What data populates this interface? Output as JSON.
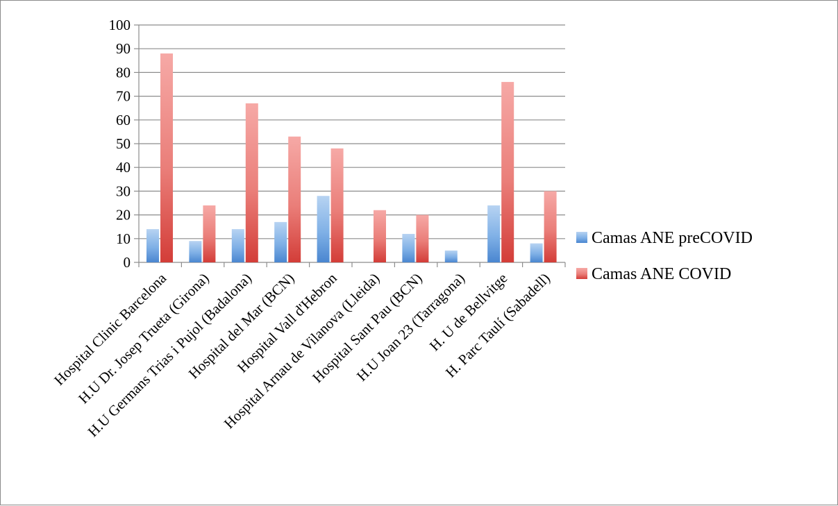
{
  "chart_data": {
    "type": "bar",
    "title": "",
    "xlabel": "",
    "ylabel": "",
    "categories": [
      "Hospital Clinic Barcelona",
      "H.U Dr. Josep Trueta (Girona)",
      "H.U Germans Trias i Pujol (Badalona)",
      "Hospital del Mar (BCN)",
      "Hospital Vall d'Hebron",
      "Hospital Arnau de Vilanova (Lleida)",
      "Hospital Sant Pau (BCN)",
      "H.U Joan 23 (Tarragona)",
      "H. U de Bellvitge",
      "H. Parc Taulí (Sabadell)"
    ],
    "series": [
      {
        "name": "Camas ANE preCOVID",
        "color": "#5b9bd5",
        "values": [
          14,
          9,
          14,
          17,
          28,
          0,
          12,
          5,
          24,
          8
        ]
      },
      {
        "name": "Camas ANE COVID",
        "color": "#e0504d",
        "values": [
          88,
          24,
          67,
          53,
          48,
          22,
          20,
          0,
          76,
          30
        ]
      }
    ],
    "ylim": [
      0,
      100
    ],
    "yticks": [
      0,
      10,
      20,
      30,
      40,
      50,
      60,
      70,
      80,
      90,
      100
    ],
    "grid": true,
    "legend_position": "right"
  }
}
